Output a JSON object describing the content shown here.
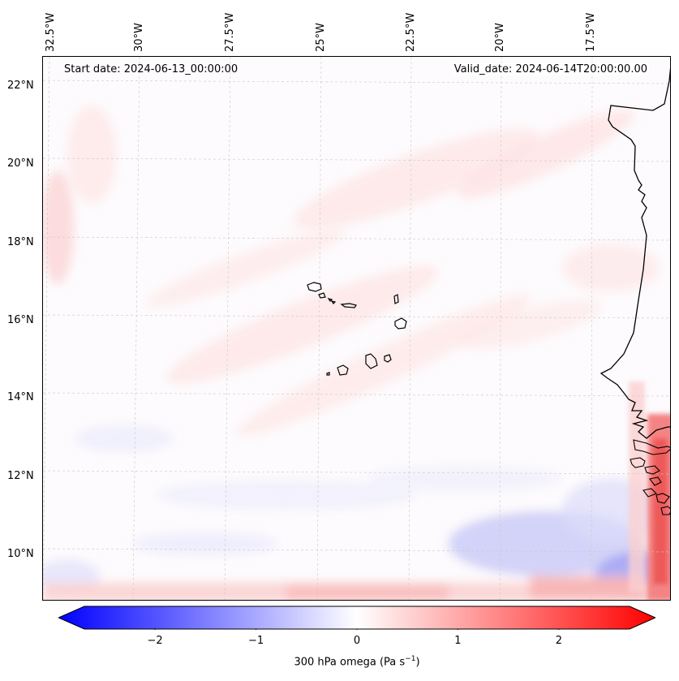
{
  "map": {
    "start_date": "Start date: 2024-06-13_00:00:00",
    "valid_date": "Valid_date: 2024-06-14T20:00:00.00",
    "lon_ticks": [
      "32.5°W",
      "30°W",
      "27.5°W",
      "25°W",
      "22.5°W",
      "20°W",
      "17.5°W"
    ],
    "lat_ticks": [
      "22°N",
      "20°N",
      "18°N",
      "16°N",
      "14°N",
      "12°N",
      "10°N"
    ],
    "variable": "300 hPa omega",
    "units": "Pa s",
    "units_exponent": "−1"
  },
  "colorbar": {
    "ticks": [
      "−2",
      "−1",
      "0",
      "1",
      "2"
    ],
    "min": -2.7,
    "max": 2.7,
    "low_color": "#0000ff",
    "mid_color": "#ffffff",
    "high_color": "#ff0000"
  }
}
